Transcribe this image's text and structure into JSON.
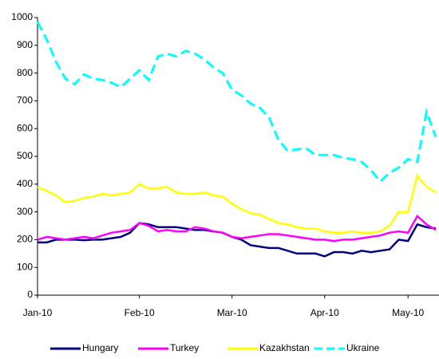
{
  "chart_data": {
    "type": "line",
    "categories": [
      "Jan-10",
      null,
      null,
      null,
      null,
      null,
      null,
      null,
      null,
      null,
      null,
      "Feb-10",
      null,
      null,
      null,
      null,
      null,
      null,
      null,
      null,
      null,
      "Mar-10",
      null,
      null,
      null,
      null,
      null,
      null,
      null,
      null,
      null,
      "Apr-10",
      null,
      null,
      null,
      null,
      null,
      null,
      null,
      null,
      "May-10",
      null,
      null,
      null
    ],
    "series": [
      {
        "name": "Hungary",
        "color": "#000080",
        "style": "solid",
        "values": [
          190,
          190,
          200,
          200,
          200,
          198,
          200,
          200,
          205,
          210,
          225,
          260,
          255,
          245,
          245,
          245,
          240,
          235,
          235,
          230,
          225,
          210,
          200,
          180,
          175,
          170,
          170,
          160,
          150,
          150,
          150,
          140,
          155,
          155,
          150,
          160,
          155,
          160,
          165,
          200,
          195,
          255,
          245,
          240
        ]
      },
      {
        "name": "Turkey",
        "color": "#ff00ff",
        "style": "solid",
        "values": [
          200,
          210,
          205,
          200,
          205,
          210,
          205,
          215,
          225,
          230,
          235,
          260,
          250,
          230,
          235,
          230,
          230,
          245,
          240,
          230,
          225,
          210,
          205,
          210,
          215,
          220,
          220,
          215,
          210,
          205,
          200,
          200,
          195,
          200,
          200,
          205,
          210,
          215,
          225,
          230,
          225,
          285,
          255,
          235
        ]
      },
      {
        "name": "Kazakhstan",
        "color": "#ffff00",
        "style": "solid",
        "values": [
          390,
          375,
          360,
          335,
          340,
          350,
          355,
          365,
          360,
          365,
          370,
          400,
          385,
          385,
          390,
          370,
          365,
          365,
          370,
          360,
          355,
          330,
          310,
          295,
          290,
          275,
          260,
          255,
          245,
          240,
          240,
          230,
          225,
          225,
          230,
          225,
          225,
          230,
          250,
          300,
          300,
          430,
          390,
          370
        ]
      },
      {
        "name": "Ukraine",
        "color": "#00ffff",
        "style": "dashed",
        "values": [
          985,
          920,
          840,
          780,
          760,
          795,
          780,
          775,
          765,
          750,
          780,
          810,
          775,
          860,
          870,
          860,
          880,
          870,
          850,
          820,
          800,
          740,
          720,
          690,
          675,
          640,
          560,
          520,
          525,
          530,
          505,
          505,
          505,
          495,
          490,
          480,
          450,
          410,
          440,
          460,
          490,
          480,
          660,
          570
        ]
      }
    ],
    "ylim": [
      0,
      1000
    ],
    "yticks": [
      0,
      100,
      200,
      300,
      400,
      500,
      600,
      700,
      800,
      900,
      1000
    ],
    "grid": false,
    "legend": "bottom"
  }
}
